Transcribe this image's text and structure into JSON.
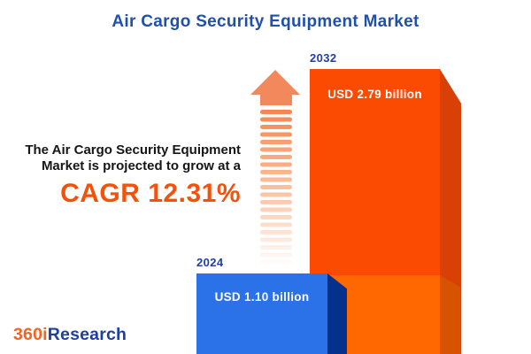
{
  "title": "Air Cargo Security Equipment Market",
  "description": {
    "line1": "The Air Cargo Security Equipment",
    "line2": "Market is projected to grow at a",
    "cagr": "CAGR 12.31%"
  },
  "bars": {
    "y2024": {
      "year": "2024",
      "value_label": "USD 1.10 billion",
      "face_color": "#2B72E8",
      "side_color": "#04318C"
    },
    "y2032": {
      "year": "2032",
      "value_label": "USD 2.79 billion",
      "face_color": "#FB4A02",
      "side_color": "#D84005",
      "base_face_color": "#FF6700",
      "base_side_color": "#D85301"
    }
  },
  "logo": {
    "prefix": "360i",
    "suffix": "Research",
    "prefix_color": "#F26422",
    "suffix_color": "#1C3FA0"
  },
  "colors": {
    "title": "#2150A8",
    "accent_orange": "#F4510A",
    "year_label": "#21409F",
    "arrow_head": "#F2885C",
    "arrow_fade_top": "#F5854E",
    "arrow_fade_bottom": "#FFFFFF"
  },
  "chart_data": {
    "type": "bar",
    "title": "Air Cargo Security Equipment Market",
    "categories": [
      "2024",
      "2032"
    ],
    "values": [
      1.1,
      2.79
    ],
    "unit": "USD billion",
    "value_labels": [
      "USD 1.10 billion",
      "USD 2.79 billion"
    ],
    "bar_colors": [
      "#2B72E8",
      "#FB4A02"
    ],
    "cagr_percent": 12.31,
    "annotation": "The Air Cargo Security Equipment Market is projected to grow at a CAGR 12.31%",
    "xlabel": "",
    "ylabel": "",
    "legend": "none",
    "axes": "hidden"
  }
}
